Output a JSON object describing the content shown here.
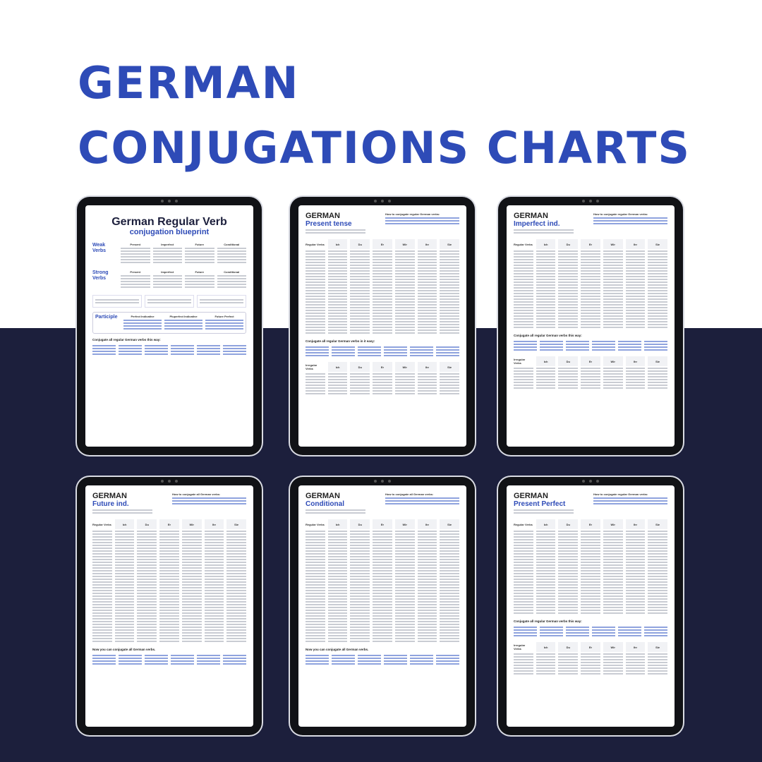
{
  "headline": {
    "line1": "GERMAN",
    "line2": "CONJUGATIONS CHARTS"
  },
  "colors": {
    "accent": "#2e4bb7",
    "navy": "#1c1f3c"
  },
  "blueprint": {
    "title": "German Regular Verb",
    "subtitle": "conjugation blueprint",
    "weak_label": "Weak Verbs",
    "strong_label": "Strong Verbs",
    "participle_label": "Participle",
    "tense_cols": [
      "Present",
      "Imperfect",
      "Future",
      "Conditional"
    ],
    "participle_cols": [
      "Perfect Indicative",
      "Pluperfect Indicative",
      "Future Perfect"
    ],
    "conj_line": "Conjugate all regular German verbs this way:"
  },
  "tablets": [
    {
      "h1": "GERMAN",
      "h2": "Present tense",
      "side": "How to conjugate regular German verbs:",
      "label": "Regular Verbs",
      "pronouns": [
        "Ich",
        "Du",
        "Er",
        "Wir",
        "Ihr",
        "Sie"
      ],
      "bottom": "Conjugate all regular German verbs in it easy:",
      "irregular": "Irregular Verbs"
    },
    {
      "h1": "GERMAN",
      "h2": "Imperfect ind.",
      "side": "How to conjugate regular German verbs:",
      "label": "Regular Verbs",
      "pronouns": [
        "Ich",
        "Du",
        "Er",
        "Wir",
        "Ihr",
        "Sie"
      ],
      "bottom": "Conjugate all regular German verbs this way:",
      "irregular": "Irregular Verbs"
    },
    {
      "h1": "GERMAN",
      "h2": "Future ind.",
      "side": "How to conjugate all German verbs:",
      "label": "Regular Verbs",
      "pronouns": [
        "Ich",
        "Du",
        "Er",
        "Wir",
        "Ihr",
        "Sie"
      ],
      "bottom": "Now you can conjugate all German verbs."
    },
    {
      "h1": "GERMAN",
      "h2": "Conditional",
      "side": "How to conjugate all German verbs:",
      "label": "Regular Verbs",
      "pronouns": [
        "Ich",
        "Du",
        "Er",
        "Wir",
        "Ihr",
        "Sie"
      ],
      "bottom": "Now you can conjugate all German verbs."
    },
    {
      "h1": "GERMAN",
      "h2": "Present Perfect",
      "side": "How to conjugate regular German verbs:",
      "label": "Regular Verbs",
      "pronouns": [
        "Ich",
        "Du",
        "Er",
        "Wir",
        "Ihr",
        "Sie"
      ],
      "bottom": "Conjugate all regular German verbs this way:",
      "irregular": "Irregular Verbs"
    }
  ]
}
